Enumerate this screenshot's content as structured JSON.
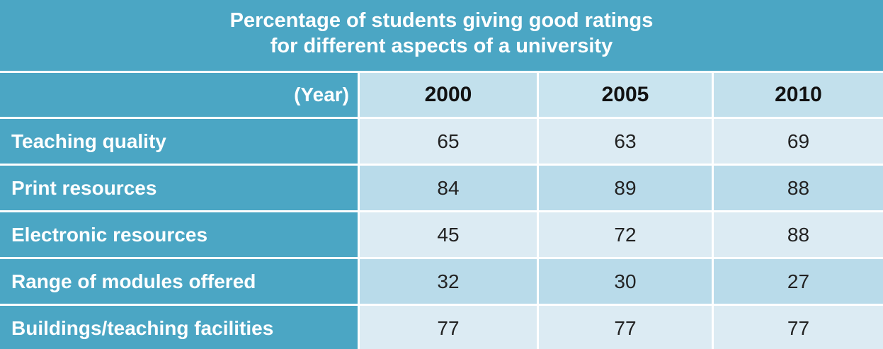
{
  "chart_data": {
    "type": "table",
    "title_lines": [
      "Percentage of students giving good ratings",
      "for different aspects of a university"
    ],
    "header_label": "(Year)",
    "columns": [
      "2000",
      "2005",
      "2010"
    ],
    "rows": [
      {
        "label": "Teaching quality",
        "values": [
          65,
          63,
          69
        ]
      },
      {
        "label": "Print resources",
        "values": [
          84,
          89,
          88
        ]
      },
      {
        "label": "Electronic resources",
        "values": [
          45,
          72,
          88
        ]
      },
      {
        "label": "Range of modules offered",
        "values": [
          32,
          30,
          27
        ]
      },
      {
        "label": "Buildings/teaching facilities",
        "values": [
          77,
          77,
          77
        ]
      }
    ]
  },
  "colors": {
    "header_blue": "#4ba6c4",
    "row_light": "#dcebf3",
    "row_mid": "#b9dbea"
  }
}
